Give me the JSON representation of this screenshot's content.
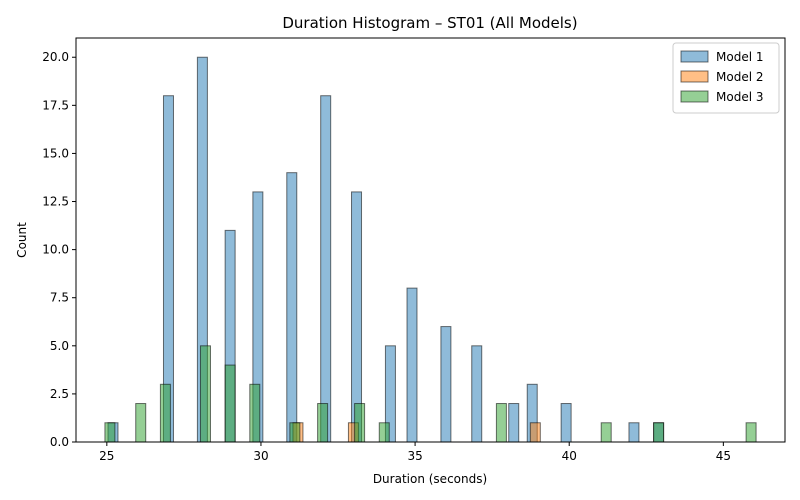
{
  "chart_data": {
    "type": "bar",
    "title": "Duration Histogram – ST01 (All Models)",
    "xlabel": "Duration (seconds)",
    "ylabel": "Count",
    "xlim": [
      24.0,
      47.0
    ],
    "ylim": [
      0,
      21
    ],
    "xticks": [
      25,
      30,
      35,
      40,
      45
    ],
    "yticks": [
      "0.0",
      "2.5",
      "5.0",
      "7.5",
      "10.0",
      "12.5",
      "15.0",
      "17.5",
      "20.0"
    ],
    "grid": false,
    "legend_position": "top-right",
    "series": [
      {
        "name": "Model 1",
        "color": "#1f77b4",
        "bins": [
          {
            "x": 25.2,
            "count": 1
          },
          {
            "x": 27.0,
            "count": 18
          },
          {
            "x": 28.1,
            "count": 20
          },
          {
            "x": 29.0,
            "count": 11
          },
          {
            "x": 29.9,
            "count": 13
          },
          {
            "x": 31.0,
            "count": 14
          },
          {
            "x": 32.1,
            "count": 18
          },
          {
            "x": 33.1,
            "count": 13
          },
          {
            "x": 34.2,
            "count": 5
          },
          {
            "x": 34.9,
            "count": 8
          },
          {
            "x": 36.0,
            "count": 6
          },
          {
            "x": 37.0,
            "count": 5
          },
          {
            "x": 38.2,
            "count": 2
          },
          {
            "x": 38.8,
            "count": 3
          },
          {
            "x": 39.9,
            "count": 2
          },
          {
            "x": 42.1,
            "count": 1
          },
          {
            "x": 42.9,
            "count": 1
          }
        ]
      },
      {
        "name": "Model 2",
        "color": "#ff7f0e",
        "bins": [
          {
            "x": 31.2,
            "count": 1
          },
          {
            "x": 33.0,
            "count": 1
          },
          {
            "x": 38.9,
            "count": 1
          }
        ]
      },
      {
        "name": "Model 3",
        "color": "#2ca02c",
        "bins": [
          {
            "x": 25.1,
            "count": 1
          },
          {
            "x": 26.1,
            "count": 2
          },
          {
            "x": 26.9,
            "count": 3
          },
          {
            "x": 28.2,
            "count": 5
          },
          {
            "x": 29.0,
            "count": 4
          },
          {
            "x": 29.8,
            "count": 3
          },
          {
            "x": 31.1,
            "count": 1
          },
          {
            "x": 32.0,
            "count": 2
          },
          {
            "x": 33.2,
            "count": 2
          },
          {
            "x": 34.0,
            "count": 1
          },
          {
            "x": 37.8,
            "count": 2
          },
          {
            "x": 41.2,
            "count": 1
          },
          {
            "x": 42.9,
            "count": 1
          },
          {
            "x": 45.9,
            "count": 1
          }
        ]
      }
    ]
  }
}
